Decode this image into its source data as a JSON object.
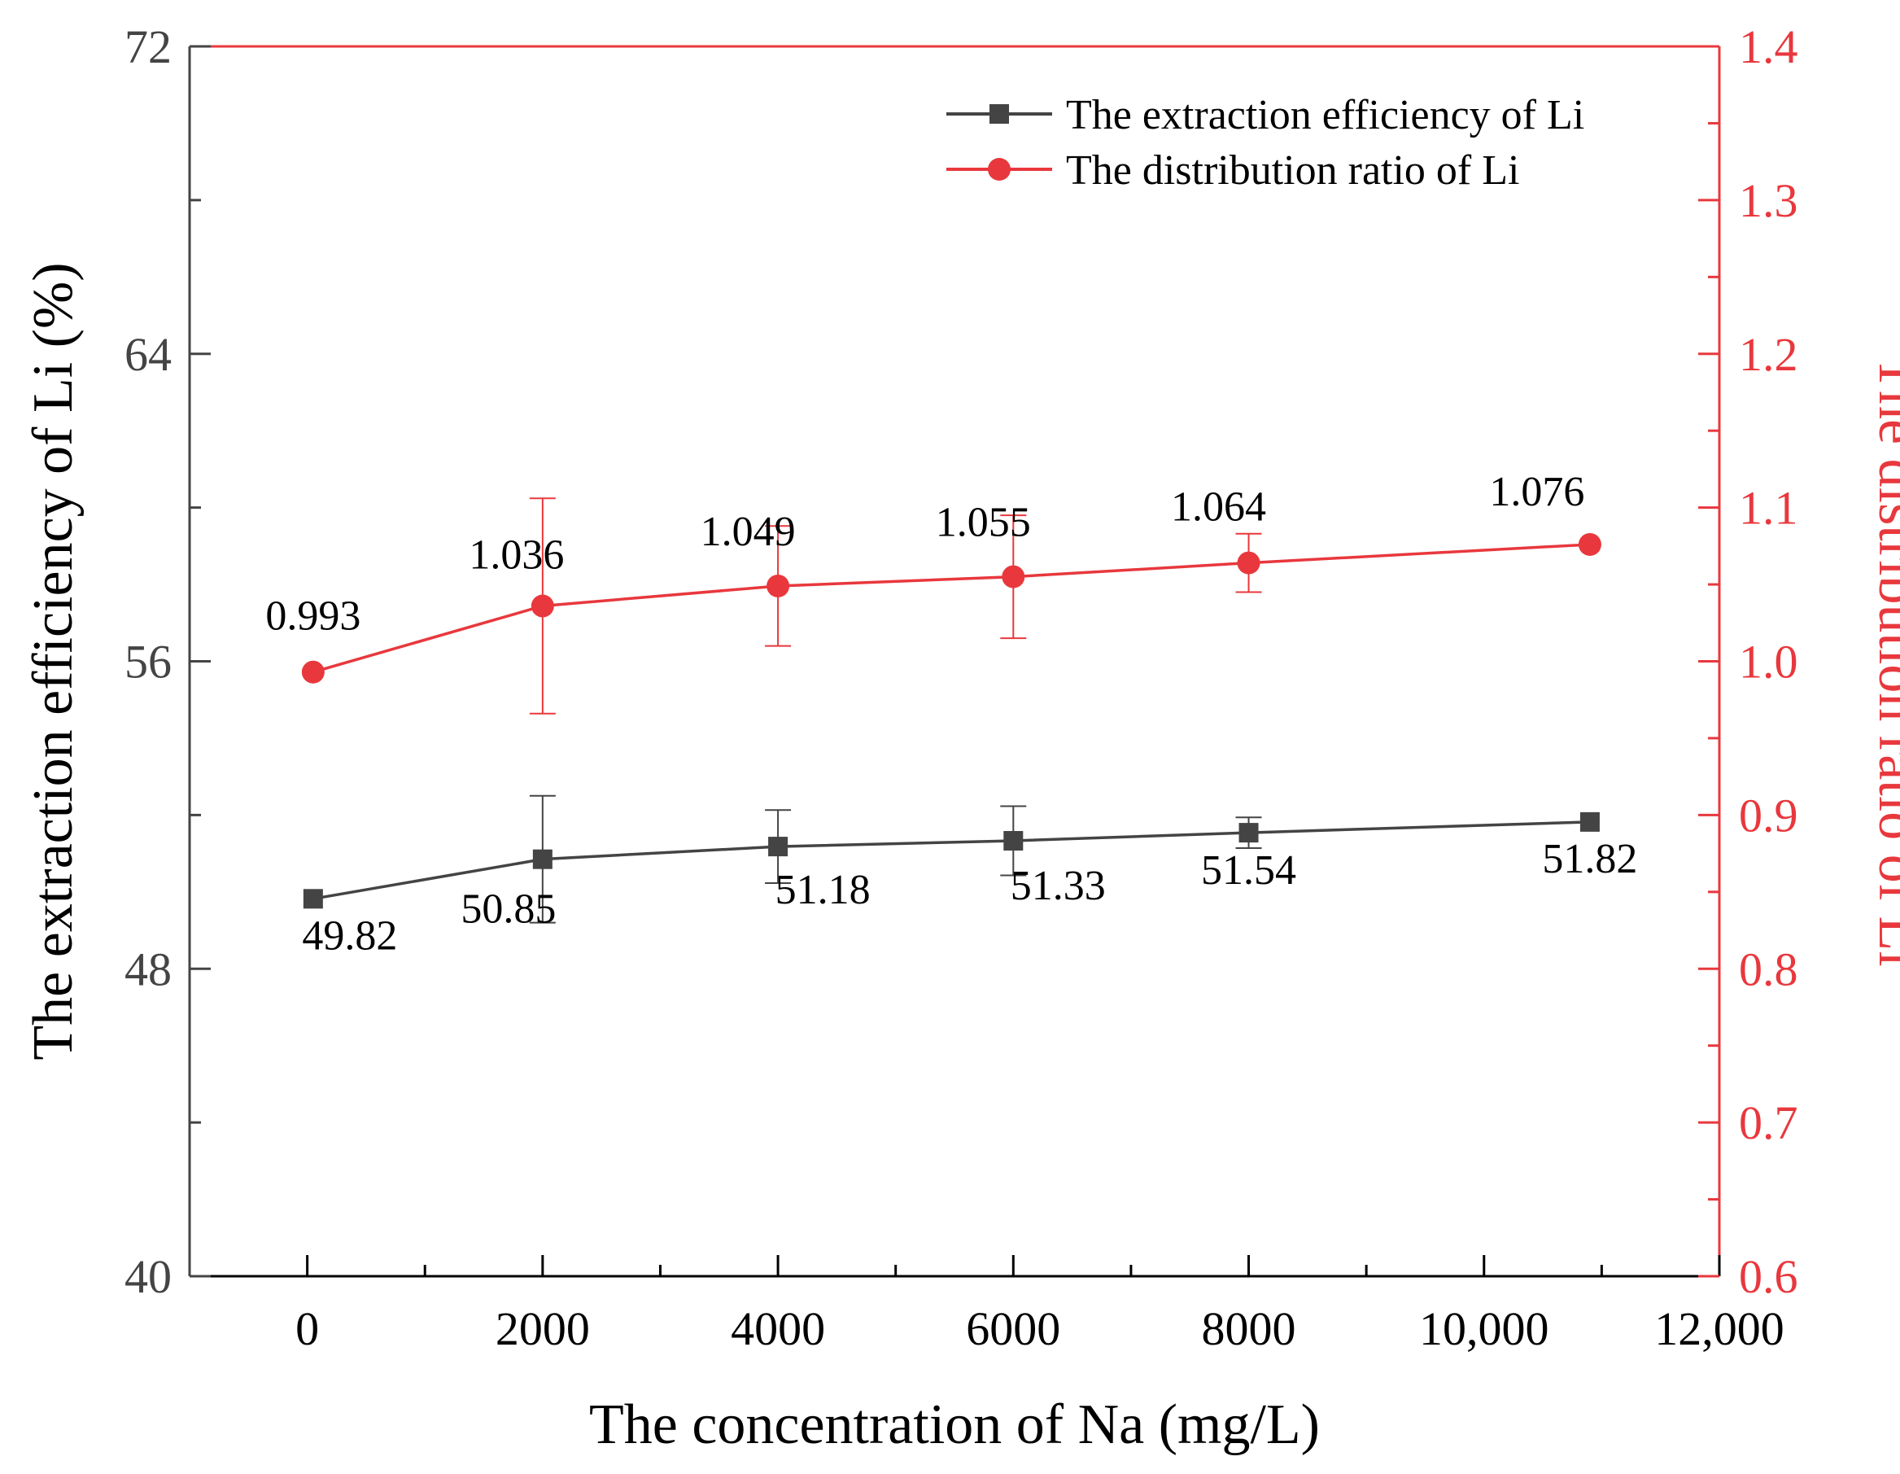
{
  "chart_data": {
    "type": "line",
    "x_axis": {
      "label": "The concentration of Na (mg/L)",
      "range": [
        -1000,
        12000
      ],
      "ticks": [
        0,
        2000,
        4000,
        6000,
        8000,
        10000,
        12000
      ],
      "tick_labels": [
        "0",
        "2000",
        "4000",
        "6000",
        "8000",
        "10,000",
        "12,000"
      ],
      "minor_step": 1000
    },
    "y_left": {
      "label": "The extraction efficiency of Li (%)",
      "range": [
        40,
        72
      ],
      "ticks": [
        40,
        48,
        56,
        64,
        72
      ],
      "tick_labels": [
        "40",
        "48",
        "56",
        "64",
        "72"
      ],
      "minor_step": 4,
      "color": "#444444"
    },
    "y_right": {
      "label": "The distribution ratio of Li",
      "range": [
        0.6,
        1.4
      ],
      "ticks": [
        0.6,
        0.7,
        0.8,
        0.9,
        1.0,
        1.1,
        1.2,
        1.3,
        1.4
      ],
      "tick_labels": [
        "0.6",
        "0.7",
        "0.8",
        "0.9",
        "1.0",
        "1.1",
        "1.2",
        "1.3",
        "1.4"
      ],
      "minor_step": 0.05,
      "color": "#e8383d"
    },
    "series": [
      {
        "name": "The extraction efficiency of Li",
        "axis": "left",
        "marker": "square",
        "color": "#444444",
        "x": [
          50,
          2000,
          4000,
          6000,
          8000,
          10900
        ],
        "y": [
          49.82,
          50.85,
          51.18,
          51.33,
          51.54,
          51.82
        ],
        "error": [
          0,
          1.65,
          0.95,
          0.9,
          0.4,
          0
        ],
        "labels": [
          "49.82",
          "50.85",
          "51.18",
          "51.33",
          "51.54",
          "51.82"
        ]
      },
      {
        "name": "The distribution ratio of Li",
        "axis": "right",
        "marker": "circle",
        "color": "#e8383d",
        "x": [
          50,
          2000,
          4000,
          6000,
          8000,
          10900
        ],
        "y": [
          0.993,
          1.036,
          1.049,
          1.055,
          1.064,
          1.076
        ],
        "error": [
          0,
          0.07,
          0.039,
          0.04,
          0.019,
          0
        ],
        "labels": [
          "0.993",
          "1.036",
          "1.049",
          "1.055",
          "1.064",
          "1.076"
        ]
      }
    ],
    "legend": {
      "position": "top-right",
      "entries": [
        "The extraction efficiency of Li",
        "The distribution ratio of Li"
      ]
    },
    "grid": false
  }
}
